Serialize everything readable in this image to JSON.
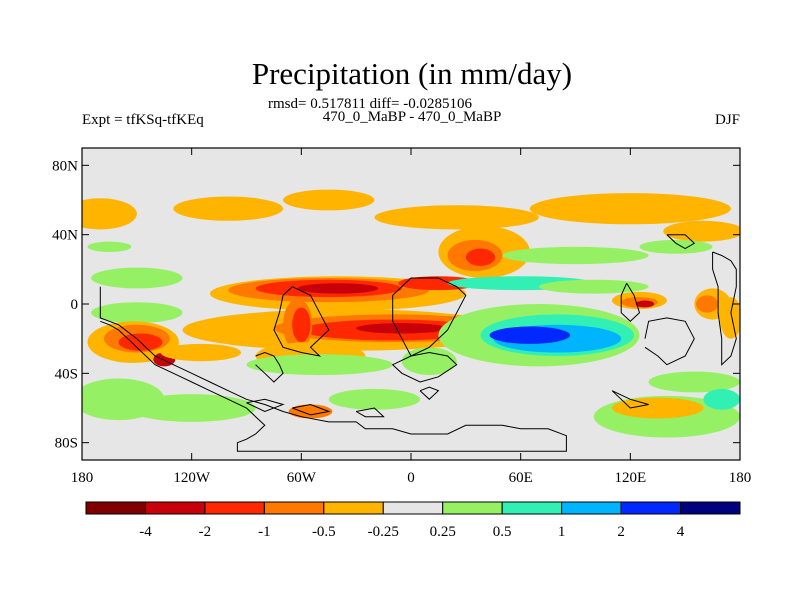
{
  "chart_data": {
    "type": "heatmap",
    "title": "Precipitation (in mm/day)",
    "subtitle": "rmsd= 0.517811 diff= -0.0285106",
    "left_label": "Expt = tfKSq-tfKEq",
    "center_label": "470_0_MaBP - 470_0_MaBP",
    "right_label": "DJF",
    "x_range": [
      -180,
      180
    ],
    "y_range": [
      -90,
      90
    ],
    "x_ticks": [
      {
        "value": -180,
        "label": "180"
      },
      {
        "value": -120,
        "label": "120W"
      },
      {
        "value": -60,
        "label": "60W"
      },
      {
        "value": 0,
        "label": "0"
      },
      {
        "value": 60,
        "label": "60E"
      },
      {
        "value": 120,
        "label": "120E"
      },
      {
        "value": 180,
        "label": "180"
      }
    ],
    "y_ticks": [
      {
        "value": 80,
        "label": "80N"
      },
      {
        "value": 40,
        "label": "40N"
      },
      {
        "value": 0,
        "label": "0"
      },
      {
        "value": -40,
        "label": "40S"
      },
      {
        "value": -80,
        "label": "80S"
      }
    ],
    "colorbar": {
      "colors": [
        "#800000",
        "#c8000a",
        "#ff2800",
        "#ff7800",
        "#ffb400",
        "#e6e6e6",
        "#96f064",
        "#32f0b4",
        "#00b4ff",
        "#0028ff",
        "#000080"
      ],
      "labels": [
        "-4",
        "-2",
        "-1",
        "-0.5",
        "-0.25",
        "0.25",
        "0.5",
        "1",
        "2",
        "4"
      ]
    },
    "background_color": "#e6e6e6",
    "regions": [
      {
        "lon": -170,
        "lat": 52,
        "rx": 20,
        "ry": 9,
        "level": 4
      },
      {
        "lon": -100,
        "lat": 55,
        "rx": 30,
        "ry": 7,
        "level": 4
      },
      {
        "lon": -45,
        "lat": 60,
        "rx": 25,
        "ry": 6,
        "level": 4
      },
      {
        "lon": 25,
        "lat": 50,
        "rx": 45,
        "ry": 7,
        "level": 4
      },
      {
        "lon": 120,
        "lat": 55,
        "rx": 55,
        "ry": 9,
        "level": 4
      },
      {
        "lon": 160,
        "lat": 42,
        "rx": 22,
        "ry": 6,
        "level": 4
      },
      {
        "lon": 40,
        "lat": 30,
        "rx": 25,
        "ry": 15,
        "level": 4
      },
      {
        "lon": 35,
        "lat": 28,
        "rx": 15,
        "ry": 9,
        "level": 3
      },
      {
        "lon": 38,
        "lat": 27,
        "rx": 8,
        "ry": 5,
        "level": 2
      },
      {
        "lon": -165,
        "lat": 33,
        "rx": 12,
        "ry": 3,
        "level": 6
      },
      {
        "lon": 90,
        "lat": 28,
        "rx": 40,
        "ry": 5,
        "level": 6
      },
      {
        "lon": 145,
        "lat": 33,
        "rx": 20,
        "ry": 4,
        "level": 6
      },
      {
        "lon": -40,
        "lat": 6,
        "rx": 70,
        "ry": 10,
        "level": 4
      },
      {
        "lon": -45,
        "lat": 8,
        "rx": 55,
        "ry": 7,
        "level": 3
      },
      {
        "lon": -45,
        "lat": 9,
        "rx": 40,
        "ry": 5,
        "level": 2
      },
      {
        "lon": -40,
        "lat": 9,
        "rx": 22,
        "ry": 3,
        "level": 1
      },
      {
        "lon": 15,
        "lat": 12,
        "rx": 22,
        "ry": 4,
        "level": 2
      },
      {
        "lon": 60,
        "lat": 12,
        "rx": 40,
        "ry": 4,
        "level": 7
      },
      {
        "lon": 100,
        "lat": 10,
        "rx": 30,
        "ry": 4,
        "level": 6
      },
      {
        "lon": -150,
        "lat": 15,
        "rx": 25,
        "ry": 6,
        "level": 6
      },
      {
        "lon": -150,
        "lat": -5,
        "rx": 25,
        "ry": 6,
        "level": 6
      },
      {
        "lon": -35,
        "lat": -15,
        "rx": 90,
        "ry": 12,
        "level": 4
      },
      {
        "lon": -10,
        "lat": -14,
        "rx": 65,
        "ry": 8,
        "level": 3
      },
      {
        "lon": -10,
        "lat": -15,
        "rx": 50,
        "ry": 6,
        "level": 2
      },
      {
        "lon": -5,
        "lat": -14,
        "rx": 25,
        "ry": 3,
        "level": 1
      },
      {
        "lon": -62,
        "lat": -12,
        "rx": 8,
        "ry": 15,
        "level": 3
      },
      {
        "lon": -60,
        "lat": -12,
        "rx": 5,
        "ry": 10,
        "level": 2
      },
      {
        "lon": -152,
        "lat": -22,
        "rx": 25,
        "ry": 12,
        "level": 4
      },
      {
        "lon": -150,
        "lat": -20,
        "rx": 18,
        "ry": 8,
        "level": 3
      },
      {
        "lon": -148,
        "lat": -22,
        "rx": 12,
        "ry": 5,
        "level": 2
      },
      {
        "lon": -135,
        "lat": -32,
        "rx": 6,
        "ry": 4,
        "level": 1
      },
      {
        "lon": -115,
        "lat": -28,
        "rx": 22,
        "ry": 5,
        "level": 4
      },
      {
        "lon": -55,
        "lat": -30,
        "rx": 30,
        "ry": 8,
        "level": 4
      },
      {
        "lon": 70,
        "lat": -18,
        "rx": 55,
        "ry": 18,
        "level": 6
      },
      {
        "lon": 80,
        "lat": -18,
        "rx": 42,
        "ry": 12,
        "level": 7
      },
      {
        "lon": 80,
        "lat": -20,
        "rx": 35,
        "ry": 8,
        "level": 8
      },
      {
        "lon": 65,
        "lat": -18,
        "rx": 22,
        "ry": 5,
        "level": 9
      },
      {
        "lon": 125,
        "lat": 2,
        "rx": 15,
        "ry": 5,
        "level": 4
      },
      {
        "lon": 125,
        "lat": 1,
        "rx": 10,
        "ry": 3,
        "level": 3
      },
      {
        "lon": 128,
        "lat": 0,
        "rx": 5,
        "ry": 2,
        "level": 1
      },
      {
        "lon": 165,
        "lat": 0,
        "rx": 10,
        "ry": 9,
        "level": 4
      },
      {
        "lon": 162,
        "lat": 0,
        "rx": 6,
        "ry": 5,
        "level": 3
      },
      {
        "lon": 175,
        "lat": -8,
        "rx": 6,
        "ry": 12,
        "level": 4
      },
      {
        "lon": -50,
        "lat": -35,
        "rx": 40,
        "ry": 6,
        "level": 6
      },
      {
        "lon": 10,
        "lat": -33,
        "rx": 15,
        "ry": 8,
        "level": 6
      },
      {
        "lon": -160,
        "lat": -55,
        "rx": 25,
        "ry": 12,
        "level": 6
      },
      {
        "lon": -120,
        "lat": -60,
        "rx": 35,
        "ry": 8,
        "level": 6
      },
      {
        "lon": -20,
        "lat": -55,
        "rx": 25,
        "ry": 6,
        "level": 6
      },
      {
        "lon": 140,
        "lat": -65,
        "rx": 40,
        "ry": 12,
        "level": 6
      },
      {
        "lon": 155,
        "lat": -45,
        "rx": 25,
        "ry": 6,
        "level": 6
      },
      {
        "lon": 135,
        "lat": -60,
        "rx": 25,
        "ry": 6,
        "level": 4
      },
      {
        "lon": -55,
        "lat": -62,
        "rx": 12,
        "ry": 4,
        "level": 3
      },
      {
        "lon": 170,
        "lat": -55,
        "rx": 10,
        "ry": 6,
        "level": 7
      }
    ],
    "land_outlines": [
      [
        [
          -170,
          10
        ],
        [
          -170,
          -8
        ],
        [
          -165,
          -10
        ],
        [
          -160,
          -12
        ],
        [
          -150,
          -20
        ],
        [
          -140,
          -30
        ],
        [
          -130,
          -35
        ],
        [
          -120,
          -40
        ],
        [
          -110,
          -45
        ],
        [
          -100,
          -50
        ],
        [
          -90,
          -55
        ],
        [
          -80,
          -58
        ],
        [
          -70,
          -62
        ],
        [
          -60,
          -65
        ],
        [
          -45,
          -68
        ],
        [
          -30,
          -68
        ],
        [
          -25,
          -72
        ],
        [
          -10,
          -72
        ],
        [
          0,
          -75
        ],
        [
          20,
          -75
        ],
        [
          30,
          -70
        ],
        [
          40,
          -70
        ],
        [
          50,
          -70
        ],
        [
          60,
          -72
        ],
        [
          75,
          -72
        ],
        [
          85,
          -76
        ],
        [
          85,
          -85
        ],
        [
          -95,
          -85
        ],
        [
          -95,
          -80
        ],
        [
          -90,
          -78
        ],
        [
          -85,
          -75
        ],
        [
          -80,
          -70
        ],
        [
          -85,
          -65
        ],
        [
          -90,
          -60
        ],
        [
          -100,
          -55
        ],
        [
          -110,
          -50
        ],
        [
          -120,
          -45
        ],
        [
          -130,
          -40
        ],
        [
          -140,
          -35
        ],
        [
          -150,
          -25
        ],
        [
          -160,
          -15
        ],
        [
          -165,
          -12
        ],
        [
          -170,
          -10
        ]
      ],
      [
        [
          -65,
          10
        ],
        [
          -55,
          5
        ],
        [
          -50,
          -5
        ],
        [
          -45,
          -15
        ],
        [
          -50,
          -20
        ],
        [
          -55,
          -25
        ],
        [
          -50,
          -30
        ],
        [
          -60,
          -28
        ],
        [
          -70,
          -25
        ],
        [
          -75,
          -15
        ],
        [
          -72,
          -5
        ],
        [
          -70,
          5
        ],
        [
          -65,
          10
        ]
      ],
      [
        [
          -85,
          -30
        ],
        [
          -80,
          -28
        ],
        [
          -75,
          -30
        ],
        [
          -72,
          -35
        ],
        [
          -70,
          -40
        ],
        [
          -75,
          -45
        ],
        [
          -80,
          -40
        ],
        [
          -85,
          -35
        ]
      ],
      [
        [
          -10,
          5
        ],
        [
          0,
          15
        ],
        [
          15,
          15
        ],
        [
          25,
          10
        ],
        [
          30,
          5
        ],
        [
          25,
          -5
        ],
        [
          20,
          -15
        ],
        [
          10,
          -25
        ],
        [
          0,
          -30
        ],
        [
          -5,
          -20
        ],
        [
          -10,
          -10
        ],
        [
          -10,
          5
        ]
      ],
      [
        [
          0,
          -30
        ],
        [
          10,
          -28
        ],
        [
          20,
          -30
        ],
        [
          25,
          -35
        ],
        [
          15,
          -42
        ],
        [
          5,
          -45
        ],
        [
          -5,
          -40
        ],
        [
          -10,
          -35
        ],
        [
          0,
          -30
        ]
      ],
      [
        [
          5,
          -50
        ],
        [
          10,
          -55
        ],
        [
          15,
          -50
        ],
        [
          10,
          -48
        ],
        [
          5,
          -50
        ]
      ],
      [
        [
          -90,
          -57
        ],
        [
          -80,
          -55
        ],
        [
          -70,
          -58
        ],
        [
          -80,
          -62
        ],
        [
          -90,
          -57
        ]
      ],
      [
        [
          -65,
          -60
        ],
        [
          -55,
          -58
        ],
        [
          -45,
          -62
        ],
        [
          -55,
          -64
        ],
        [
          -65,
          -60
        ]
      ],
      [
        [
          -30,
          -62
        ],
        [
          -20,
          -60
        ],
        [
          -15,
          -65
        ],
        [
          -25,
          -65
        ],
        [
          -30,
          -62
        ]
      ],
      [
        [
          140,
          40
        ],
        [
          145,
          35
        ],
        [
          150,
          32
        ],
        [
          155,
          35
        ],
        [
          150,
          40
        ],
        [
          140,
          40
        ]
      ],
      [
        [
          165,
          30
        ],
        [
          170,
          28
        ],
        [
          175,
          25
        ],
        [
          178,
          20
        ],
        [
          178,
          10
        ],
        [
          175,
          -5
        ],
        [
          178,
          -20
        ],
        [
          175,
          -30
        ],
        [
          170,
          -35
        ],
        [
          170,
          -20
        ],
        [
          168,
          -5
        ],
        [
          168,
          10
        ],
        [
          165,
          20
        ],
        [
          165,
          30
        ]
      ],
      [
        [
          118,
          12
        ],
        [
          122,
          5
        ],
        [
          125,
          -5
        ],
        [
          120,
          -10
        ],
        [
          115,
          -5
        ],
        [
          115,
          5
        ],
        [
          118,
          12
        ]
      ],
      [
        [
          128,
          -25
        ],
        [
          135,
          -30
        ],
        [
          140,
          -35
        ],
        [
          150,
          -30
        ],
        [
          155,
          -20
        ],
        [
          150,
          -10
        ],
        [
          140,
          -8
        ],
        [
          130,
          -10
        ],
        [
          128,
          -20
        ]
      ],
      [
        [
          110,
          -50
        ],
        [
          120,
          -55
        ],
        [
          130,
          -58
        ],
        [
          120,
          -60
        ],
        [
          110,
          -50
        ]
      ]
    ]
  }
}
